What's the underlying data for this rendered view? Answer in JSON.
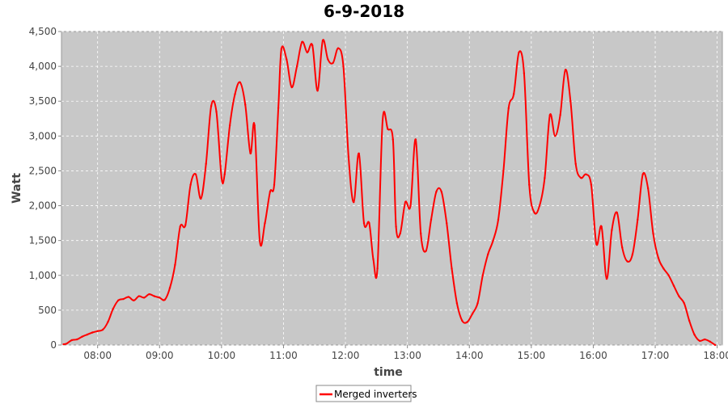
{
  "chart_data": {
    "type": "line",
    "title": "6-9-2018",
    "xlabel": "time",
    "ylabel": "Watt",
    "xlim": [
      "07:25",
      "18:05"
    ],
    "ylim": [
      0,
      4500
    ],
    "xticks": [
      "08:00",
      "09:00",
      "10:00",
      "11:00",
      "12:00",
      "13:00",
      "14:00",
      "15:00",
      "16:00",
      "17:00",
      "18:00"
    ],
    "yticks": [
      "0",
      "500",
      "1,000",
      "1,500",
      "2,000",
      "2,500",
      "3,000",
      "3,500",
      "4,000",
      "4,500"
    ],
    "ytick_values": [
      0,
      500,
      1000,
      1500,
      2000,
      2500,
      3000,
      3500,
      4000,
      4500
    ],
    "grid": true,
    "background": "#c8c8c8",
    "legend_position": "bottom-center",
    "series": [
      {
        "name": "Merged inverters",
        "color": "#ff0000",
        "x": [
          "07:27",
          "07:30",
          "07:35",
          "07:40",
          "07:45",
          "07:50",
          "07:55",
          "08:00",
          "08:05",
          "08:10",
          "08:15",
          "08:20",
          "08:25",
          "08:30",
          "08:35",
          "08:40",
          "08:45",
          "08:50",
          "08:55",
          "09:00",
          "09:05",
          "09:10",
          "09:15",
          "09:20",
          "09:25",
          "09:30",
          "09:35",
          "09:40",
          "09:45",
          "09:50",
          "09:55",
          "10:00",
          "10:03",
          "10:08",
          "10:13",
          "10:18",
          "10:23",
          "10:28",
          "10:32",
          "10:37",
          "10:42",
          "10:47",
          "10:51",
          "10:55",
          "10:58",
          "11:03",
          "11:08",
          "11:13",
          "11:18",
          "11:23",
          "11:28",
          "11:33",
          "11:38",
          "11:43",
          "11:48",
          "11:53",
          "11:58",
          "12:03",
          "12:08",
          "12:13",
          "12:18",
          "12:23",
          "12:27",
          "12:31",
          "12:36",
          "12:41",
          "12:46",
          "12:49",
          "12:53",
          "12:58",
          "13:03",
          "13:08",
          "13:13",
          "13:18",
          "13:23",
          "13:28",
          "13:33",
          "13:38",
          "13:43",
          "13:48",
          "13:53",
          "13:58",
          "14:03",
          "14:08",
          "14:13",
          "14:18",
          "14:23",
          "14:28",
          "14:33",
          "14:38",
          "14:43",
          "14:48",
          "14:53",
          "14:58",
          "15:03",
          "15:08",
          "15:13",
          "15:18",
          "15:23",
          "15:28",
          "15:33",
          "15:38",
          "15:43",
          "15:48",
          "15:53",
          "15:58",
          "16:03",
          "16:08",
          "16:13",
          "16:18",
          "16:23",
          "16:28",
          "16:33",
          "16:38",
          "16:43",
          "16:48",
          "16:53",
          "16:58",
          "17:03",
          "17:08",
          "17:13",
          "17:18",
          "17:23",
          "17:28",
          "17:33",
          "17:38",
          "17:43",
          "17:48",
          "17:53",
          "17:58"
        ],
        "values": [
          10,
          20,
          70,
          80,
          120,
          150,
          180,
          200,
          220,
          330,
          520,
          640,
          660,
          690,
          640,
          700,
          680,
          730,
          700,
          680,
          650,
          820,
          1150,
          1700,
          1720,
          2300,
          2450,
          2100,
          2600,
          3430,
          3350,
          2400,
          2450,
          3150,
          3600,
          3770,
          3450,
          2750,
          3150,
          1500,
          1750,
          2200,
          2300,
          3400,
          4250,
          4100,
          3700,
          4000,
          4350,
          4200,
          4300,
          3650,
          4370,
          4100,
          4050,
          4260,
          4000,
          2700,
          2050,
          2750,
          1750,
          1750,
          1230,
          1100,
          3220,
          3100,
          2950,
          1700,
          1600,
          2050,
          2000,
          2950,
          1600,
          1350,
          1800,
          2200,
          2200,
          1750,
          1100,
          600,
          350,
          330,
          450,
          600,
          1000,
          1300,
          1500,
          1800,
          2500,
          3400,
          3600,
          4200,
          3900,
          2300,
          1900,
          2000,
          2400,
          3300,
          3000,
          3300,
          3950,
          3500,
          2600,
          2400,
          2450,
          2300,
          1450,
          1700,
          950,
          1650,
          1900,
          1400,
          1200,
          1300,
          1800,
          2450,
          2250,
          1600,
          1250,
          1100,
          1000,
          850,
          700,
          600,
          350,
          150,
          60,
          80,
          50,
          0
        ]
      }
    ]
  }
}
